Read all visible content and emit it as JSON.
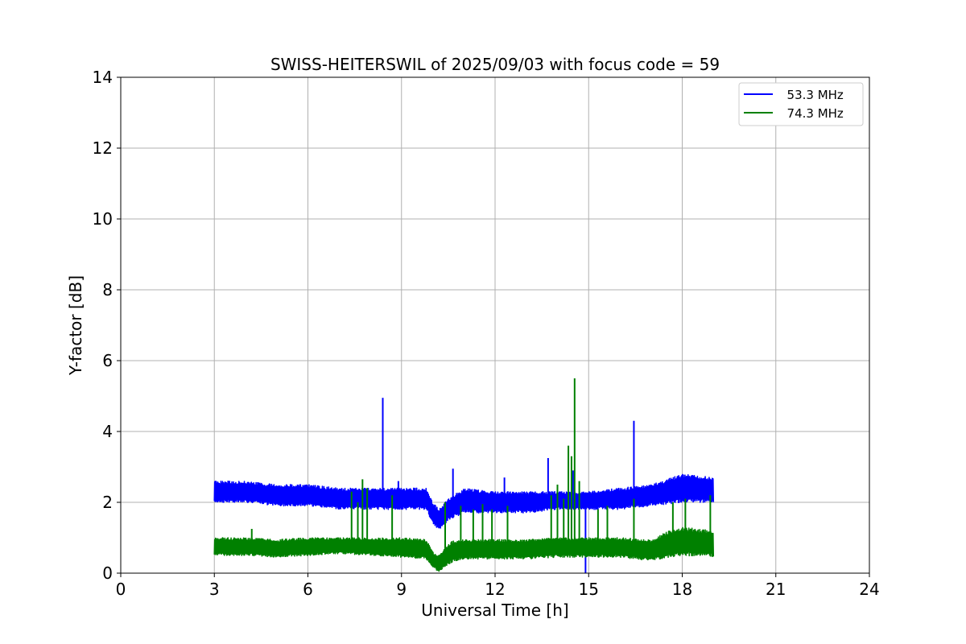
{
  "chart_data": {
    "type": "line",
    "title": "SWISS-HEITERSWIL of 2025/09/03 with focus code = 59",
    "xlabel": "Universal Time [h]",
    "ylabel": "Y-factor [dB]",
    "xlim": [
      0,
      24
    ],
    "ylim": [
      0,
      14
    ],
    "xticks": [
      0,
      3,
      6,
      9,
      12,
      15,
      18,
      21,
      24
    ],
    "yticks": [
      0,
      2,
      4,
      6,
      8,
      10,
      12,
      14
    ],
    "grid": true,
    "legend_position": "top-right",
    "series": [
      {
        "name": "  53.3 MHz",
        "color": "#0000ff",
        "band": [
          [
            3.0,
            2.0,
            2.6
          ],
          [
            4.0,
            2.0,
            2.6
          ],
          [
            5.0,
            1.9,
            2.5
          ],
          [
            6.0,
            1.9,
            2.5
          ],
          [
            7.0,
            1.8,
            2.4
          ],
          [
            8.0,
            1.8,
            2.4
          ],
          [
            9.0,
            1.8,
            2.4
          ],
          [
            9.8,
            1.8,
            2.4
          ],
          [
            10.0,
            1.4,
            2.0
          ],
          [
            10.2,
            1.2,
            1.8
          ],
          [
            10.5,
            1.5,
            2.1
          ],
          [
            11.0,
            1.7,
            2.4
          ],
          [
            12.0,
            1.7,
            2.3
          ],
          [
            13.0,
            1.7,
            2.3
          ],
          [
            14.0,
            1.8,
            2.3
          ],
          [
            15.0,
            1.8,
            2.3
          ],
          [
            16.0,
            1.8,
            2.4
          ],
          [
            17.0,
            1.9,
            2.5
          ],
          [
            18.0,
            2.0,
            2.8
          ],
          [
            19.0,
            2.0,
            2.7
          ]
        ],
        "spikes": [
          [
            8.4,
            4.95
          ],
          [
            10.65,
            2.95
          ],
          [
            12.3,
            2.7
          ],
          [
            13.7,
            3.25
          ],
          [
            14.5,
            2.9
          ],
          [
            14.9,
            0.0
          ],
          [
            16.45,
            4.3
          ],
          [
            8.9,
            2.6
          ]
        ]
      },
      {
        "name": "  74.3 MHz",
        "color": "#008000",
        "band": [
          [
            3.0,
            0.5,
            1.0
          ],
          [
            4.0,
            0.5,
            1.0
          ],
          [
            5.0,
            0.45,
            0.95
          ],
          [
            6.0,
            0.5,
            1.0
          ],
          [
            7.0,
            0.55,
            1.0
          ],
          [
            8.0,
            0.5,
            1.0
          ],
          [
            9.0,
            0.45,
            1.0
          ],
          [
            9.8,
            0.4,
            0.95
          ],
          [
            10.0,
            0.15,
            0.6
          ],
          [
            10.2,
            0.05,
            0.5
          ],
          [
            10.6,
            0.3,
            0.9
          ],
          [
            11.0,
            0.4,
            0.95
          ],
          [
            12.0,
            0.4,
            0.95
          ],
          [
            13.0,
            0.4,
            0.95
          ],
          [
            14.0,
            0.45,
            1.0
          ],
          [
            15.0,
            0.45,
            1.0
          ],
          [
            16.0,
            0.45,
            1.0
          ],
          [
            17.0,
            0.35,
            0.95
          ],
          [
            17.6,
            0.45,
            1.2
          ],
          [
            18.0,
            0.5,
            1.3
          ],
          [
            19.0,
            0.45,
            1.2
          ]
        ],
        "spikes": [
          [
            4.2,
            1.25
          ],
          [
            7.4,
            2.3
          ],
          [
            7.6,
            2.0
          ],
          [
            7.75,
            2.65
          ],
          [
            7.9,
            2.4
          ],
          [
            8.7,
            2.2
          ],
          [
            10.4,
            2.0
          ],
          [
            10.9,
            1.9
          ],
          [
            11.3,
            1.8
          ],
          [
            11.6,
            1.95
          ],
          [
            11.9,
            1.8
          ],
          [
            12.4,
            1.9
          ],
          [
            13.8,
            2.2
          ],
          [
            14.0,
            2.5
          ],
          [
            14.2,
            2.1
          ],
          [
            14.35,
            3.6
          ],
          [
            14.45,
            3.3
          ],
          [
            14.55,
            5.5
          ],
          [
            14.7,
            2.6
          ],
          [
            15.3,
            1.8
          ],
          [
            15.6,
            1.9
          ],
          [
            16.45,
            2.1
          ],
          [
            17.7,
            2.0
          ],
          [
            18.1,
            2.1
          ],
          [
            18.9,
            2.2
          ]
        ]
      }
    ]
  }
}
